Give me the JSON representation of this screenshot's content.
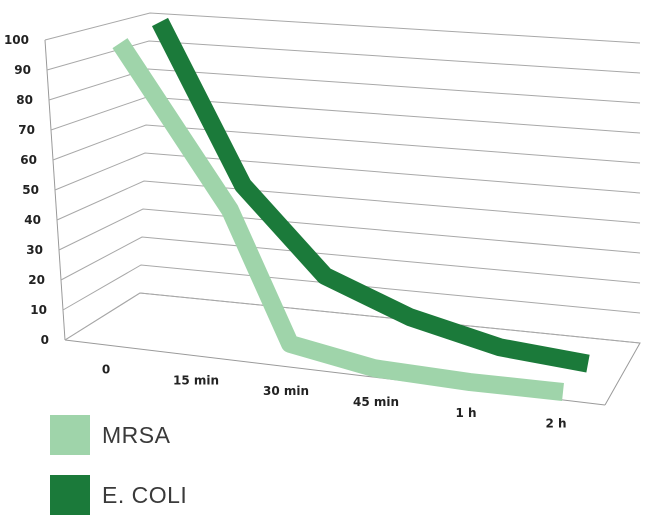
{
  "chart_data": {
    "type": "line",
    "categories": [
      "0",
      "15 min",
      "30 min",
      "45 min",
      "1 h",
      "2 h"
    ],
    "y_ticks": [
      "0",
      "10",
      "20",
      "30",
      "40",
      "50",
      "60",
      "70",
      "80",
      "90",
      "100"
    ],
    "ylim": [
      0,
      100
    ],
    "grid": true,
    "three_d": true,
    "legend_position": "bottom-left",
    "series": [
      {
        "name": "MRSA",
        "color": "#9fd4aa",
        "values": [
          98,
          52,
          14,
          7,
          3,
          0
        ]
      },
      {
        "name": "E. COLI",
        "color": "#1b7a3a",
        "values": [
          100,
          54,
          28,
          16,
          7,
          2
        ]
      }
    ]
  }
}
